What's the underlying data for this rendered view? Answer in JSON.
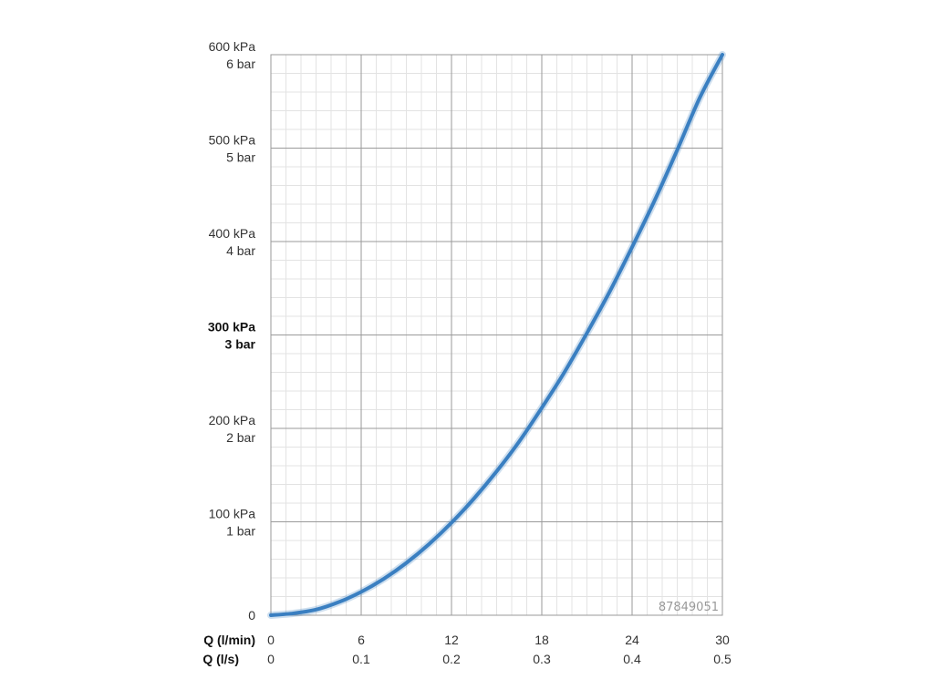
{
  "chart_data": {
    "type": "line",
    "title": "",
    "y_tick_labels": [
      {
        "value": 0,
        "kpa": "0",
        "bar": "",
        "bold": false
      },
      {
        "value": 100,
        "kpa": "100 kPa",
        "bar": "1 bar",
        "bold": false
      },
      {
        "value": 200,
        "kpa": "200 kPa",
        "bar": "2 bar",
        "bold": false
      },
      {
        "value": 300,
        "kpa": "300 kPa",
        "bar": "3 bar",
        "bold": true
      },
      {
        "value": 400,
        "kpa": "400 kPa",
        "bar": "4 bar",
        "bold": false
      },
      {
        "value": 500,
        "kpa": "500 kPa",
        "bar": "5 bar",
        "bold": false
      },
      {
        "value": 600,
        "kpa": "600 kPa",
        "bar": "6 bar",
        "bold": false
      }
    ],
    "x_row_labels": [
      "Q (l/min)",
      "Q (l/s)"
    ],
    "x_ticks_lmin": [
      "0",
      "6",
      "12",
      "18",
      "24",
      "30"
    ],
    "x_ticks_ls": [
      "0",
      "0.1",
      "0.2",
      "0.3",
      "0.4",
      "0.5"
    ],
    "x_tick_values": [
      0,
      6,
      12,
      18,
      24,
      30
    ],
    "xlim": [
      0,
      30
    ],
    "ylim": [
      0,
      600
    ],
    "x_unit": "l/min",
    "y_unit": "kPa",
    "grid": true,
    "series": [
      {
        "color": "#3a7fc1",
        "x": [
          0,
          1.5,
          3,
          4.5,
          6,
          7.5,
          9,
          10.5,
          12,
          13.5,
          15,
          16.5,
          18,
          19.5,
          21,
          22.5,
          24,
          25.5,
          27,
          28.5,
          30
        ],
        "y": [
          0,
          2,
          6,
          14,
          25,
          39,
          56,
          76,
          99,
          125,
          154,
          186,
          222,
          260,
          302,
          346,
          394,
          444,
          498,
          554,
          600
        ]
      }
    ],
    "annotation": "87849051"
  }
}
